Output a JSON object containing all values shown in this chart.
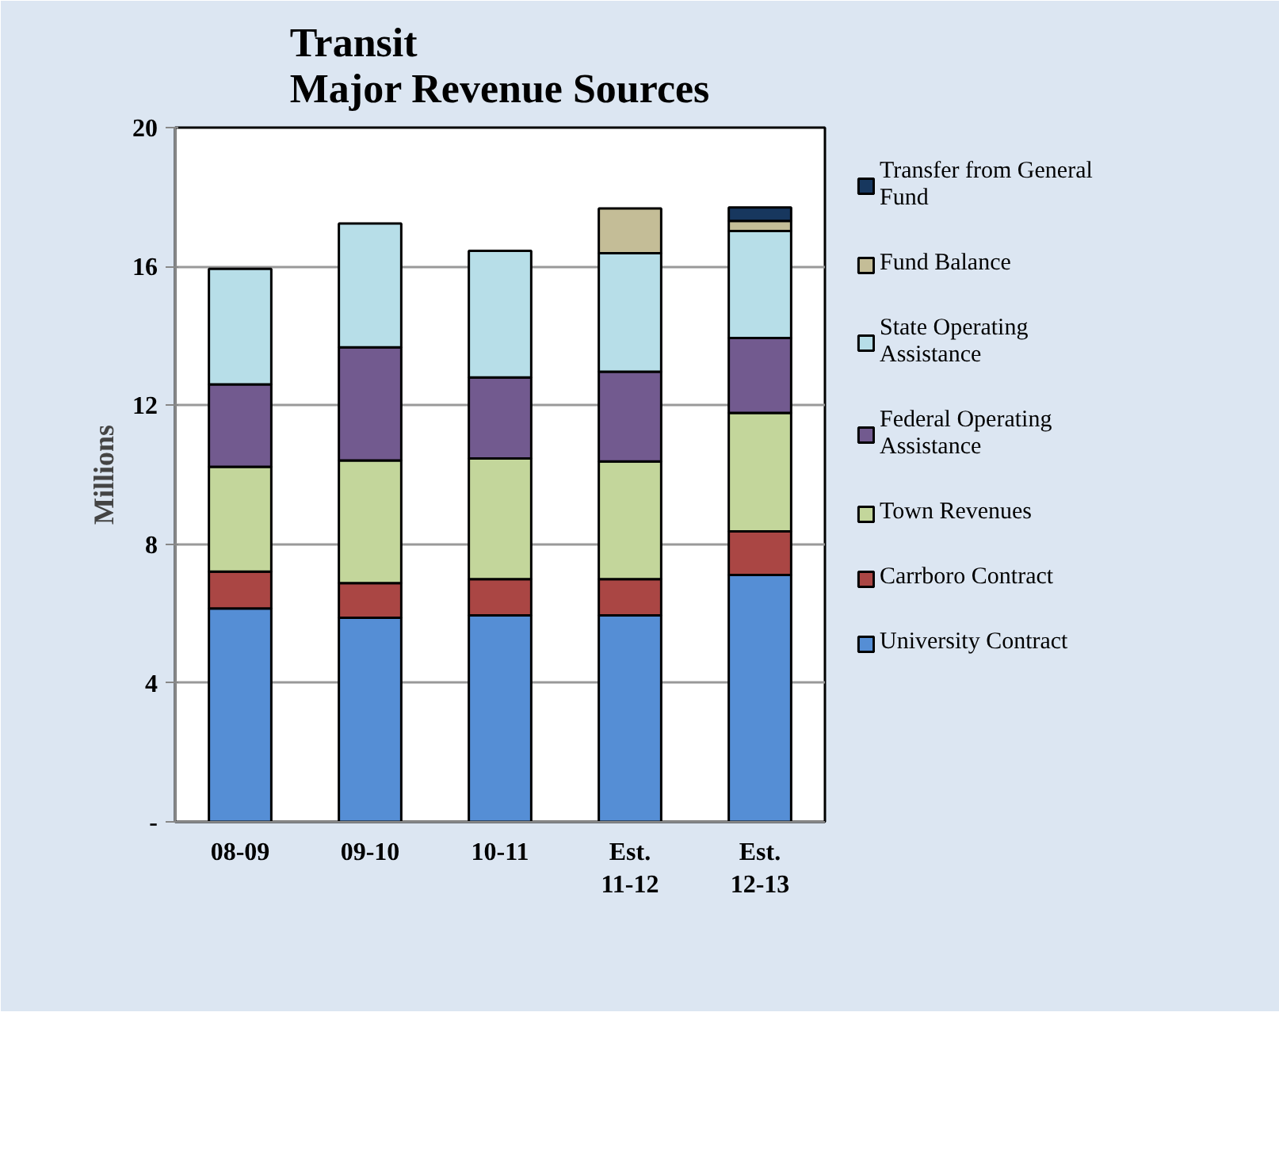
{
  "chart_data": {
    "type": "bar",
    "stacked": true,
    "title": "Transit\nMajor Revenue Sources",
    "ylabel": "Millions",
    "categories": [
      "08-09",
      "09-10",
      "10-11",
      "Est. 11-12",
      "Est. 12-13"
    ],
    "series": [
      {
        "name": "University Contract",
        "color": "#558ed5",
        "values": [
          6.15,
          5.88,
          5.95,
          5.95,
          7.11
        ]
      },
      {
        "name": "Carrboro Contract",
        "color": "#aa4644",
        "values": [
          1.06,
          1.0,
          1.04,
          1.04,
          1.26
        ]
      },
      {
        "name": "Town Revenues",
        "color": "#c3d69b",
        "values": [
          3.02,
          3.53,
          3.48,
          3.39,
          3.41
        ]
      },
      {
        "name": "Federal Operating Assistance",
        "color": "#725a8f",
        "values": [
          2.37,
          3.26,
          2.33,
          2.59,
          2.16
        ]
      },
      {
        "name": "State Operating Assistance",
        "color": "#b7dee8",
        "values": [
          3.33,
          3.57,
          3.65,
          3.41,
          3.08
        ]
      },
      {
        "name": "Fund Balance",
        "color": "#c4bd97",
        "values": [
          null,
          null,
          null,
          1.29,
          0.29
        ]
      },
      {
        "name": "Transfer from General Fund",
        "color": "#17375e",
        "values": [
          null,
          null,
          null,
          null,
          0.39
        ]
      }
    ],
    "ylim": [
      0,
      20
    ],
    "yticks": [
      {
        "value": 0,
        "label": "-"
      },
      4,
      8,
      12,
      16,
      20
    ],
    "grid": "y",
    "legend": "right"
  }
}
